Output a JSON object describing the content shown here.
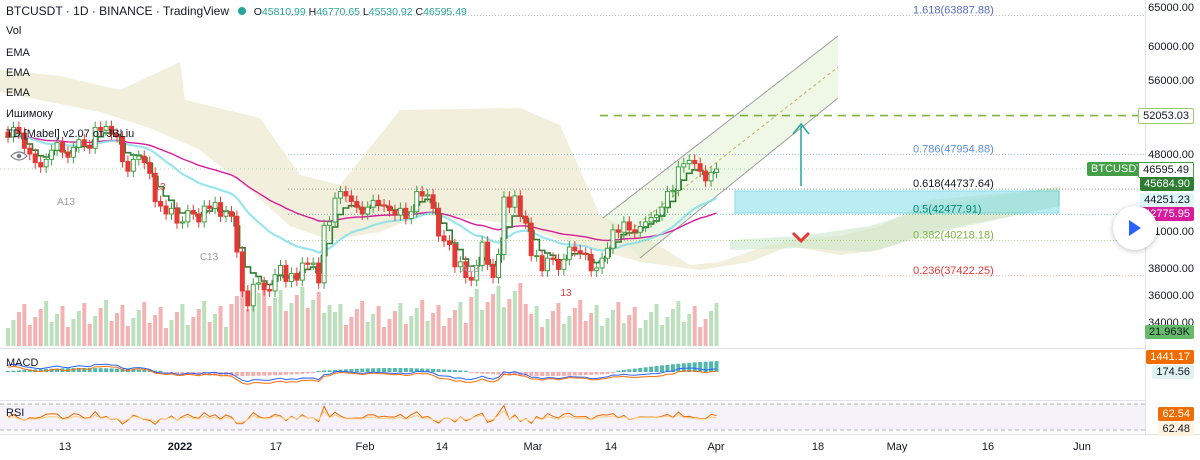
{
  "header": {
    "symbol": "BTCUSDT",
    "interval": "1D",
    "exchange": "BINANCE",
    "source": "TradingView",
    "open_label": "O",
    "open": "45810.99",
    "high_label": "H",
    "high": "46770.65",
    "low_label": "L",
    "low": "45530.92",
    "close_label": "C",
    "close": "46595.49"
  },
  "indicators": [
    "Vol",
    "EMA",
    "EMA",
    "EMA",
    "Ишимоку",
    "TD [Mabel] v2.07 от JBLiu"
  ],
  "panes": {
    "macd": "MACD",
    "rsi": "RSI"
  },
  "price_axis": {
    "ticks": [
      "65000.00",
      "60000.00",
      "56000.00",
      "52000.00",
      "48000.00",
      "44000.00",
      "41000.00",
      "38000.00",
      "36000.00",
      "34000.00"
    ],
    "tags": {
      "fib_top": "52053.03",
      "symbol": "BTCUSDT",
      "last": "46595.49",
      "ema1": "45684.90",
      "ema2": "44251.23",
      "ema3": "42775.95",
      "volume": "21.963K",
      "macd1": "1441.17",
      "macd2": "174.56",
      "rsi1": "62.54",
      "rsi2": "62.48"
    }
  },
  "time_axis": [
    "13",
    "2022",
    "17",
    "Feb",
    "14",
    "Mar",
    "14",
    "Apr",
    "18",
    "May",
    "16",
    "Jun"
  ],
  "fib_levels": [
    {
      "label": "1.618(63887.88)",
      "price": 63887.88
    },
    {
      "label": "0.786(47954.88)",
      "price": 47954.88
    },
    {
      "label": "0.618(44737.64)",
      "price": 44737.64
    },
    {
      "label": "0.5(42477.91)",
      "price": 42477.91
    },
    {
      "label": "0.382(40218.18)",
      "price": 40218.18
    },
    {
      "label": "0.236(37422.25)",
      "price": 37422.25
    }
  ],
  "td_labels": [
    "A13",
    "13",
    "C13",
    "A13",
    "13"
  ],
  "colors": {
    "up": "#26a69a",
    "up_candle": "#43a047",
    "down": "#e53935",
    "ema_green": "#2e7d32",
    "ema_pink": "#d81b9c",
    "ema_cyan": "#80deea",
    "fib_green_dash": "#66bb6a",
    "zone": "#80deea",
    "channel": "#c5e1a5"
  },
  "chart_data": {
    "type": "candlestick",
    "symbol": "BTCUSDT",
    "interval": "1D",
    "last_ohlc": {
      "open": 45810.99,
      "high": 46770.65,
      "low": 45530.92,
      "close": 46595.49
    },
    "y_ticks": [
      65000,
      60000,
      56000,
      52000,
      48000,
      44000,
      41000,
      38000,
      36000,
      34000
    ],
    "x_ticks": [
      "13",
      "2022",
      "17",
      "Feb",
      "14",
      "Mar",
      "14",
      "Apr",
      "18",
      "May",
      "16",
      "Jun"
    ],
    "key_level": 52053.03,
    "fib_retracement": [
      {
        "ratio": 1.618,
        "price": 63887.88
      },
      {
        "ratio": 0.786,
        "price": 47954.88
      },
      {
        "ratio": 0.618,
        "price": 44737.64
      },
      {
        "ratio": 0.5,
        "price": 42477.91
      },
      {
        "ratio": 0.382,
        "price": 40218.18
      },
      {
        "ratio": 0.236,
        "price": 37422.25
      }
    ],
    "volume_last": "21.963K",
    "macd_values": [
      1441.17,
      174.56
    ],
    "rsi_values": [
      62.54,
      62.48
    ],
    "closes": [
      49800,
      50800,
      50200,
      48600,
      48000,
      47200,
      46800,
      47500,
      48400,
      49200,
      48200,
      47700,
      48700,
      49500,
      48900,
      48600,
      50800,
      50500,
      50900,
      50100,
      49800,
      47300,
      46400,
      47500,
      47800,
      47200,
      46200,
      43600,
      43200,
      42500,
      43000,
      41700,
      41800,
      42800,
      42500,
      41800,
      43200,
      43000,
      43500,
      42300,
      42700,
      42300,
      39300,
      36300,
      35200,
      36800,
      36900,
      36400,
      36300,
      37500,
      38200,
      37000,
      37600,
      37100,
      38400,
      38300,
      38400,
      36900,
      41500,
      41800,
      43900,
      44500,
      44100,
      43600,
      43100,
      42500,
      43100,
      43700,
      43300,
      43200,
      42800,
      42400,
      43000,
      42100,
      42700,
      44500,
      44100,
      44200,
      43000,
      40600,
      40200,
      39900,
      38100,
      38500,
      37300,
      37100,
      38200,
      40100,
      38300,
      37300,
      39100,
      44000,
      43100,
      44100,
      42300,
      41700,
      39000,
      39000,
      37800,
      38800,
      38700,
      37900,
      38700,
      39700,
      39400,
      39200,
      39100,
      37800,
      38000,
      38800,
      39600,
      41100,
      40900,
      41800,
      41100,
      40900,
      41400,
      41800,
      42200,
      42400,
      43100,
      44500,
      44600,
      46800,
      47100,
      47400,
      47100,
      46400,
      45500,
      46300,
      46600
    ]
  }
}
